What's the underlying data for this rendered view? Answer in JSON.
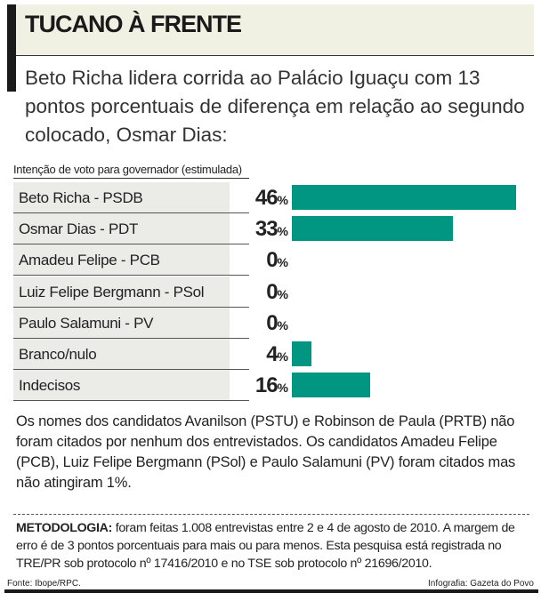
{
  "title": "TUCANO À FRENTE",
  "subtitle": "Beto Richa lidera corrida ao Palácio Iguaçu com 13 pontos porcentuais de diferença em relação ao segundo colocado, Osmar Dias:",
  "chart_data": {
    "type": "bar",
    "orientation": "horizontal",
    "title": "Intenção de voto para governador (estimulada)",
    "categories": [
      "Beto Richa - PSDB",
      "Osmar Dias - PDT",
      "Amadeu Felipe - PCB",
      "Luiz Felipe Bergmann - PSol",
      "Paulo Salamuni - PV",
      "Branco/nulo",
      "Indecisos"
    ],
    "values": [
      46,
      33,
      0,
      0,
      0,
      4,
      16
    ],
    "unit": "%",
    "color": "#009682"
  },
  "note": "Os nomes dos candidatos Avanilson (PSTU) e Robinson de Paula (PRTB) não foram citados por nenhum dos entrevistados. Os candidatos Amadeu Felipe (PCB), Luiz Felipe Bergmann (PSol) e Paulo Salamuni (PV) foram citados mas não atingiram 1%.",
  "method_label": "METODOLOGIA:",
  "method_text": " foram feitas 1.008 entrevistas entre 2 e 4 de agosto de 2010. A margem de erro é de 3 pontos porcentuais para mais ou para menos. Esta pesquisa está registrada no TRE/PR sob protocolo nº 17416/2010 e no TSE sob protocolo nº 21696/2010.",
  "source": "Fonte: Ibope/RPC.",
  "credit": "Infografia: Gazeta do Povo"
}
